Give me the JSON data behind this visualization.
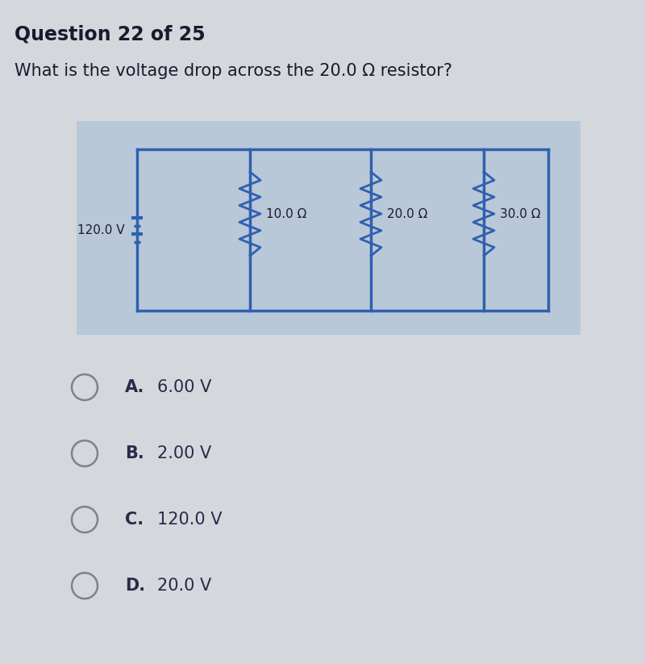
{
  "title": "Question 22 of 25",
  "question": "What is the voltage drop across the 20.0 Ω resistor?",
  "page_bg": "#d4d8dc",
  "circuit_bg": "#b8c8d8",
  "wire_color": "#3060b0",
  "text_color": "#1a1a2e",
  "option_color": "#2a2a4a",
  "voltage_label": "120.0 V",
  "resistors": [
    "10.0 Ω",
    "20.0 Ω",
    "30.0 Ω"
  ],
  "options": [
    {
      "letter": "A.",
      "text": "6.00 V"
    },
    {
      "letter": "B.",
      "text": "2.00 V"
    },
    {
      "letter": "C.",
      "text": "120.0 V"
    },
    {
      "letter": "D.",
      "text": "20.0 V"
    }
  ]
}
